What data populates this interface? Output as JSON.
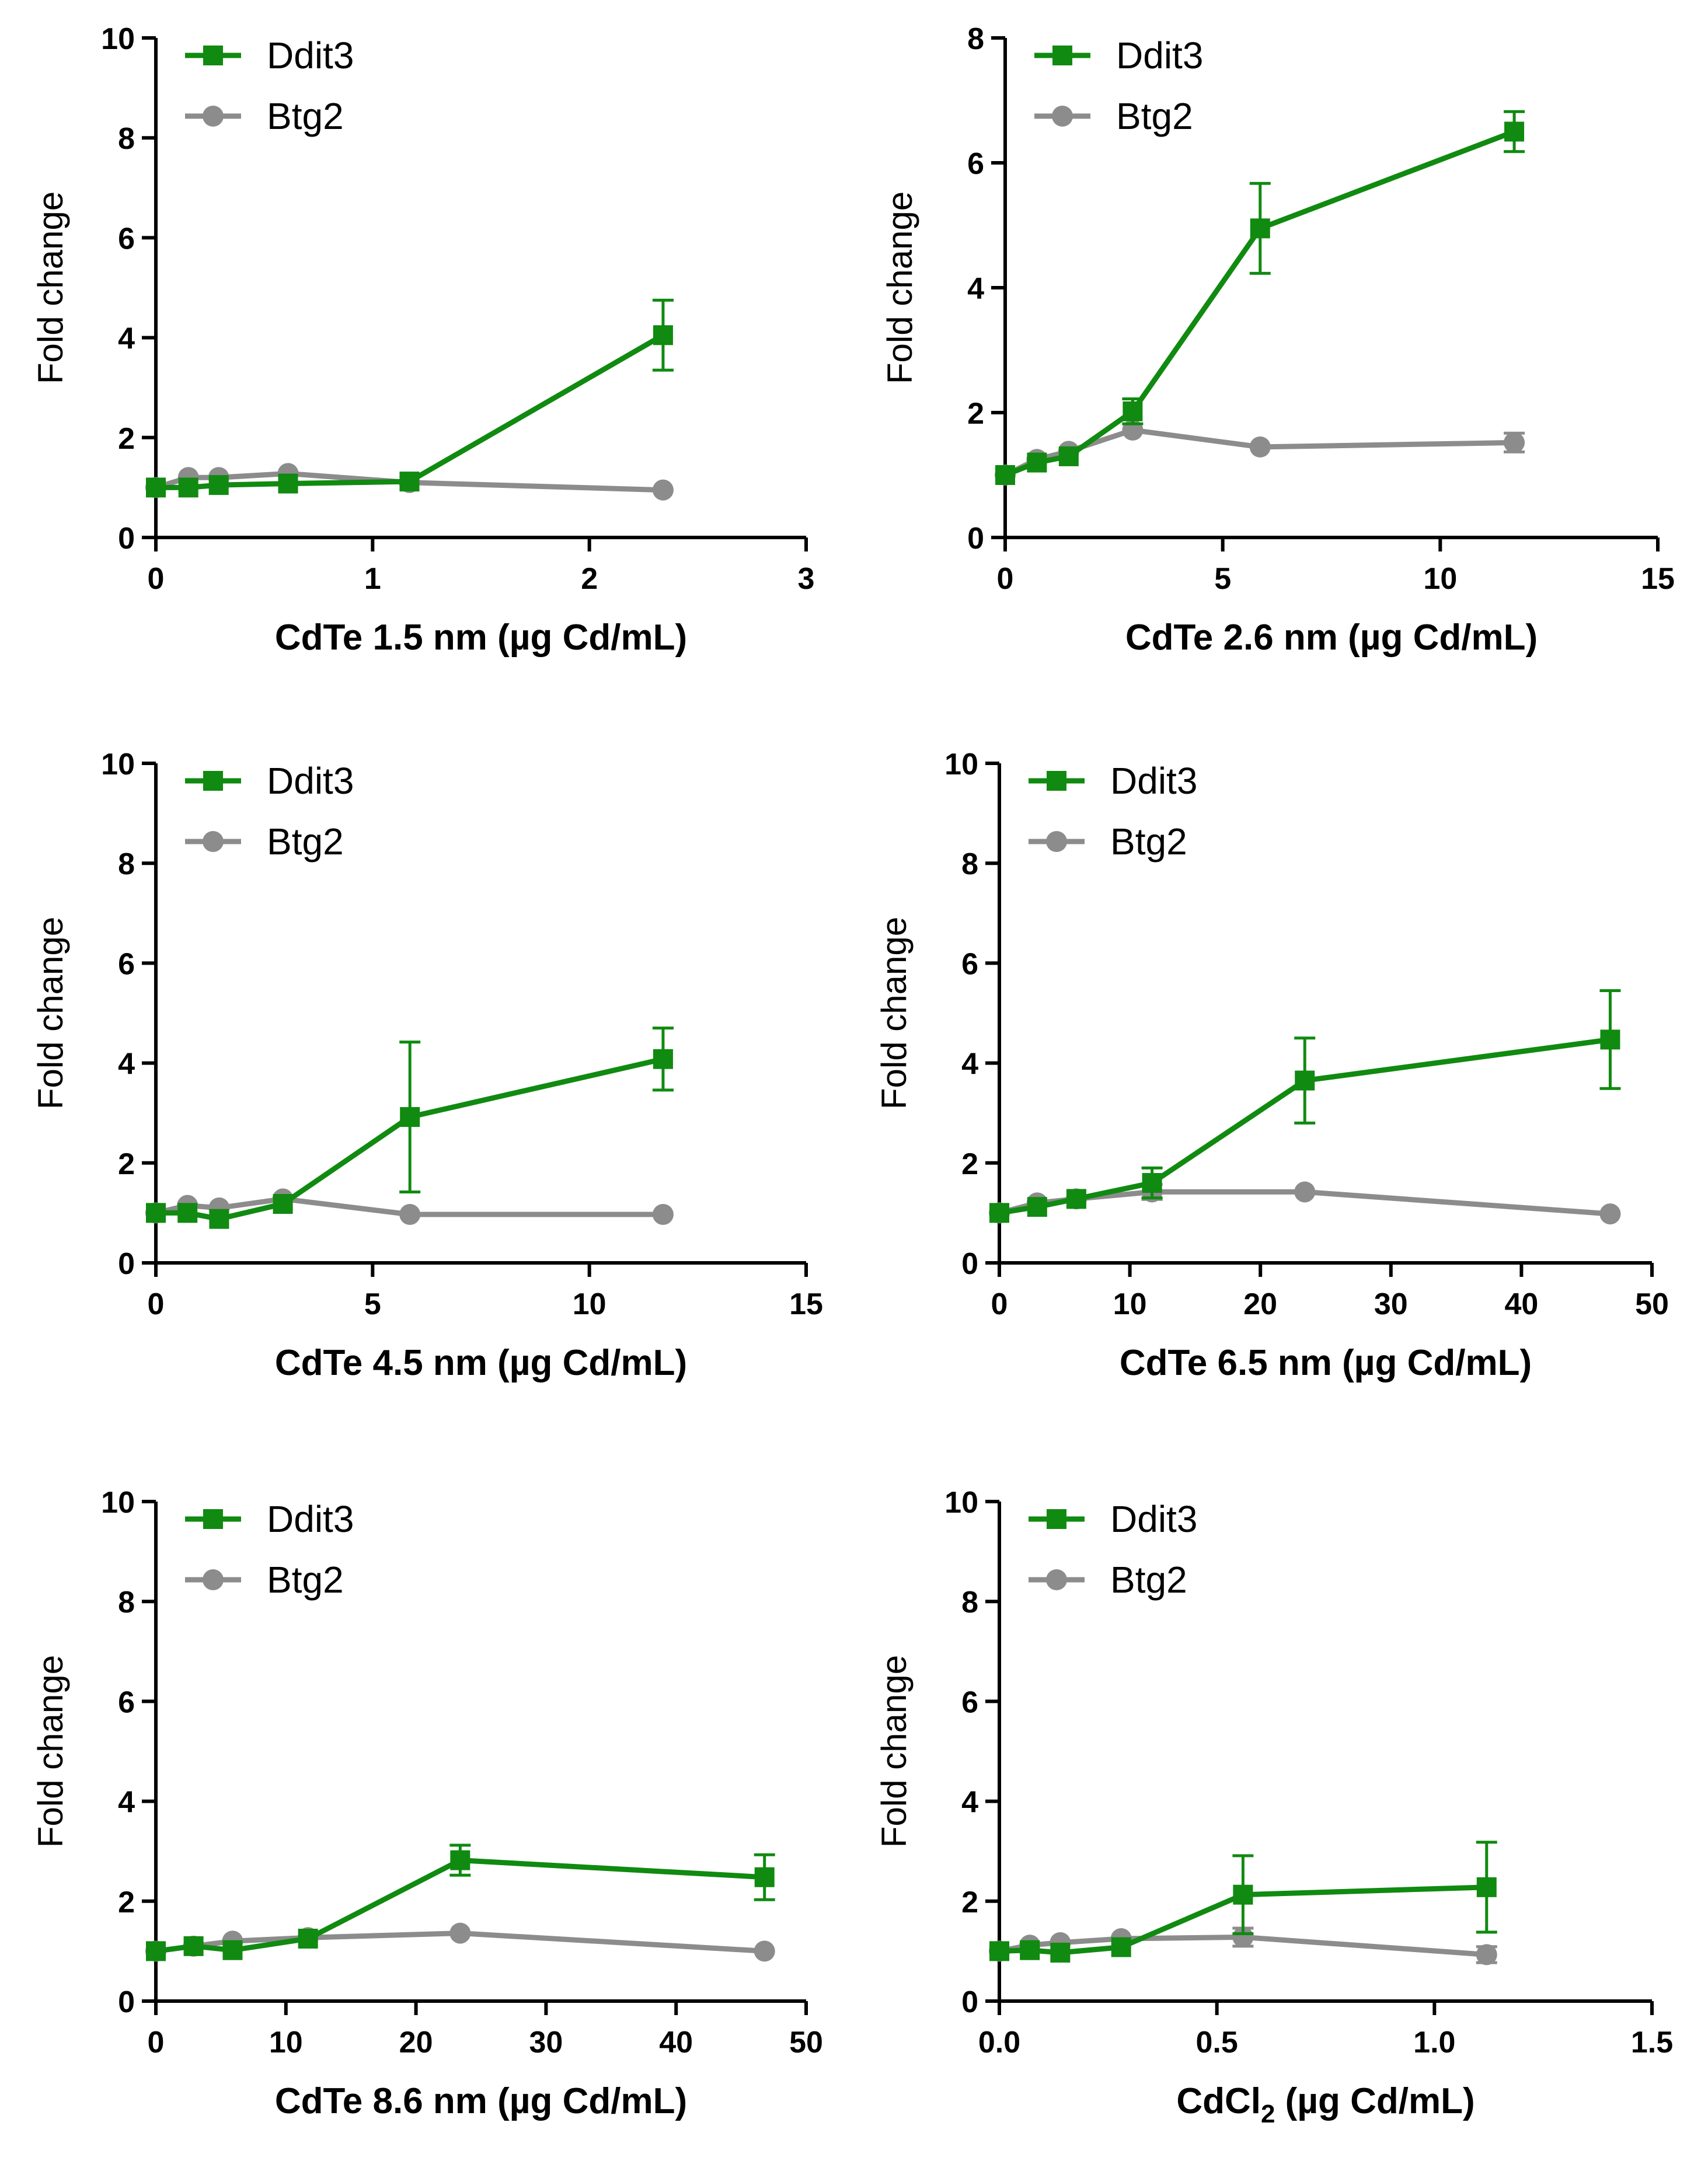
{
  "colors": {
    "ddit3": "#108a10",
    "btg2": "#8c8c8c"
  },
  "chart_data": [
    {
      "type": "line",
      "title": "",
      "xlabel": "CdTe 1.5 nm (µg Cd/mL)",
      "ylabel": "Fold change",
      "xlim": [
        0,
        3
      ],
      "ylim": [
        0,
        10
      ],
      "xticks": [
        "0",
        "1",
        "2",
        "3"
      ],
      "yticks": [
        "0",
        "2",
        "4",
        "6",
        "8",
        "10"
      ],
      "legend": [
        "Ddit3",
        "Btg2"
      ],
      "series": [
        {
          "name": "Ddit3",
          "marker": "square",
          "x": [
            0,
            0.15,
            0.29,
            0.61,
            1.17,
            2.34
          ],
          "y": [
            1.0,
            1.0,
            1.05,
            1.08,
            1.12,
            4.05
          ],
          "err": [
            0,
            0,
            0,
            0,
            0,
            0.7
          ]
        },
        {
          "name": "Btg2",
          "marker": "circle",
          "x": [
            0,
            0.15,
            0.29,
            0.61,
            1.17,
            2.34
          ],
          "y": [
            1.0,
            1.2,
            1.2,
            1.28,
            1.1,
            0.95
          ],
          "err": [
            0,
            0,
            0,
            0,
            0,
            0
          ]
        }
      ]
    },
    {
      "type": "line",
      "title": "",
      "xlabel": "CdTe 2.6 nm (µg Cd/mL)",
      "ylabel": "Fold change",
      "xlim": [
        0,
        15
      ],
      "ylim": [
        0,
        8
      ],
      "xticks": [
        "0",
        "5",
        "10",
        "15"
      ],
      "yticks": [
        "0",
        "2",
        "4",
        "6",
        "8"
      ],
      "legend": [
        "Ddit3",
        "Btg2"
      ],
      "series": [
        {
          "name": "Ddit3",
          "marker": "square",
          "x": [
            0,
            0.73,
            1.46,
            2.93,
            5.86,
            11.7
          ],
          "y": [
            1.0,
            1.2,
            1.3,
            2.02,
            4.95,
            6.5
          ],
          "err": [
            0,
            0,
            0,
            0.2,
            0.72,
            0.32
          ]
        },
        {
          "name": "Btg2",
          "marker": "circle",
          "x": [
            0,
            0.73,
            1.46,
            2.93,
            5.86,
            11.7
          ],
          "y": [
            1.0,
            1.25,
            1.38,
            1.72,
            1.45,
            1.52
          ],
          "err": [
            0,
            0,
            0,
            0,
            0,
            0.15
          ]
        }
      ]
    },
    {
      "type": "line",
      "title": "",
      "xlabel": "CdTe 4.5 nm (µg Cd/mL)",
      "ylabel": "Fold change",
      "xlim": [
        0,
        15
      ],
      "ylim": [
        0,
        10
      ],
      "xticks": [
        "0",
        "5",
        "10",
        "15"
      ],
      "yticks": [
        "0",
        "2",
        "4",
        "6",
        "8",
        "10"
      ],
      "legend": [
        "Ddit3",
        "Btg2"
      ],
      "series": [
        {
          "name": "Ddit3",
          "marker": "square",
          "x": [
            0,
            0.73,
            1.46,
            2.93,
            5.86,
            11.7
          ],
          "y": [
            1.0,
            1.0,
            0.88,
            1.18,
            2.92,
            4.08
          ],
          "err": [
            0,
            0,
            0,
            0,
            1.5,
            0.62
          ]
        },
        {
          "name": "Btg2",
          "marker": "circle",
          "x": [
            0,
            0.73,
            1.46,
            2.93,
            5.86,
            11.7
          ],
          "y": [
            1.0,
            1.15,
            1.1,
            1.28,
            0.97,
            0.97
          ],
          "err": [
            0,
            0,
            0,
            0,
            0,
            0
          ]
        }
      ]
    },
    {
      "type": "line",
      "title": "",
      "xlabel": "CdTe 6.5 nm (µg Cd/mL)",
      "ylabel": "Fold change",
      "xlim": [
        0,
        50
      ],
      "ylim": [
        0,
        10
      ],
      "xticks": [
        "0",
        "10",
        "20",
        "30",
        "40",
        "50"
      ],
      "yticks": [
        "0",
        "2",
        "4",
        "6",
        "8",
        "10"
      ],
      "legend": [
        "Ddit3",
        "Btg2"
      ],
      "series": [
        {
          "name": "Ddit3",
          "marker": "square",
          "x": [
            0,
            2.9,
            5.9,
            11.7,
            23.4,
            46.8
          ],
          "y": [
            1.0,
            1.12,
            1.28,
            1.6,
            3.65,
            4.47
          ],
          "err": [
            0,
            0,
            0,
            0.3,
            0.85,
            0.98
          ]
        },
        {
          "name": "Btg2",
          "marker": "circle",
          "x": [
            0,
            2.9,
            5.9,
            11.7,
            23.4,
            46.8
          ],
          "y": [
            1.0,
            1.2,
            1.28,
            1.42,
            1.42,
            0.98
          ],
          "err": [
            0,
            0,
            0,
            0.15,
            0,
            0
          ]
        }
      ]
    },
    {
      "type": "line",
      "title": "",
      "xlabel": "CdTe 8.6 nm (µg Cd/mL)",
      "ylabel": "Fold change",
      "xlim": [
        0,
        50
      ],
      "ylim": [
        0,
        10
      ],
      "xticks": [
        "0",
        "10",
        "20",
        "30",
        "40",
        "50"
      ],
      "yticks": [
        "0",
        "2",
        "4",
        "6",
        "8",
        "10"
      ],
      "legend": [
        "Ddit3",
        "Btg2"
      ],
      "series": [
        {
          "name": "Ddit3",
          "marker": "square",
          "x": [
            0,
            2.9,
            5.9,
            11.7,
            23.4,
            46.8
          ],
          "y": [
            1.0,
            1.1,
            1.02,
            1.25,
            2.82,
            2.48
          ],
          "err": [
            0,
            0,
            0,
            0,
            0.3,
            0.45
          ]
        },
        {
          "name": "Btg2",
          "marker": "circle",
          "x": [
            0,
            2.9,
            5.9,
            11.7,
            23.4,
            46.8
          ],
          "y": [
            1.0,
            1.1,
            1.2,
            1.27,
            1.36,
            1.0
          ],
          "err": [
            0,
            0,
            0,
            0,
            0,
            0
          ]
        }
      ]
    },
    {
      "type": "line",
      "title": "",
      "xlabel": "CdCl",
      "xlabel_sub": "2",
      "xlabel_rest": " (µg Cd/mL)",
      "ylabel": "Fold change",
      "xlim": [
        0,
        1.5
      ],
      "ylim": [
        0,
        10
      ],
      "xticks": [
        "0.0",
        "0.5",
        "1.0",
        "1.5"
      ],
      "yticks": [
        "0",
        "2",
        "4",
        "6",
        "8",
        "10"
      ],
      "legend": [
        "Ddit3",
        "Btg2"
      ],
      "series": [
        {
          "name": "Ddit3",
          "marker": "square",
          "x": [
            0,
            0.07,
            0.14,
            0.28,
            0.56,
            1.12
          ],
          "y": [
            1.0,
            1.02,
            0.97,
            1.08,
            2.13,
            2.28
          ],
          "err": [
            0,
            0,
            0,
            0,
            0.78,
            0.9
          ]
        },
        {
          "name": "Btg2",
          "marker": "circle",
          "x": [
            0,
            0.07,
            0.14,
            0.28,
            0.56,
            1.12
          ],
          "y": [
            1.0,
            1.12,
            1.17,
            1.25,
            1.28,
            0.93
          ],
          "err": [
            0,
            0,
            0,
            0,
            0.18,
            0.16
          ]
        }
      ]
    }
  ]
}
